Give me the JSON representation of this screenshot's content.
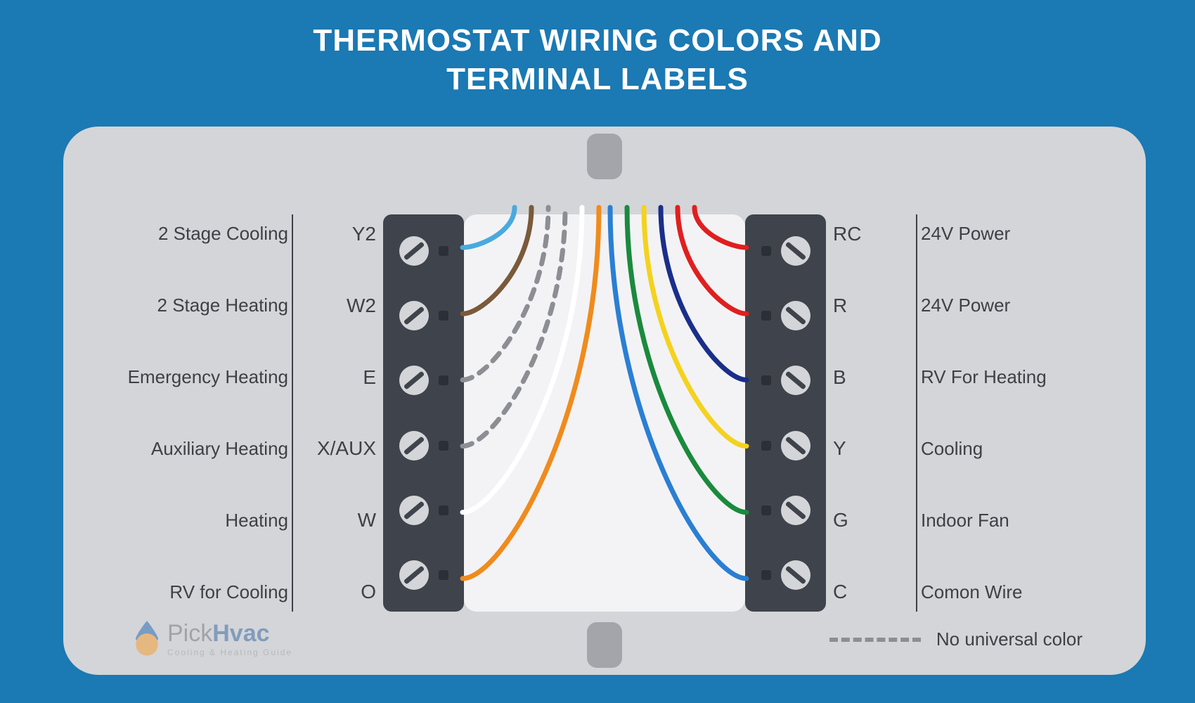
{
  "title_line1": "THERMOSTAT WIRING COLORS AND",
  "title_line2": "TERMINAL LABELS",
  "background_color": "#1b79b3",
  "panel_color": "#d4d5d8",
  "tab_color": "#a3a5aa",
  "block_color": "#3f434b",
  "center_color": "#f3f3f5",
  "text_color": "#3e4046",
  "screw_slot_color": "#3f434b",
  "title_fontsize": 44,
  "label_fontsize": 26,
  "terminal_fontsize": 28,
  "wire_stroke_width": 7,
  "left": [
    {
      "desc": "2 Stage Cooling",
      "term": "Y2",
      "wire_color": "#4aa9dd",
      "dashed": false
    },
    {
      "desc": "2 Stage Heating",
      "term": "W2",
      "wire_color": "#7a5a3a",
      "dashed": false
    },
    {
      "desc": "Emergency Heating",
      "term": "E",
      "wire_color": "#8c8e94",
      "dashed": true
    },
    {
      "desc": "Auxiliary Heating",
      "term": "X/AUX",
      "wire_color": "#8c8e94",
      "dashed": true
    },
    {
      "desc": "Heating",
      "term": "W",
      "wire_color": "#ffffff",
      "dashed": false
    },
    {
      "desc": "RV for Cooling",
      "term": "O",
      "wire_color": "#f08b1d",
      "dashed": false
    }
  ],
  "right": [
    {
      "desc": "24V Power",
      "term": "RC",
      "wire_color": "#e01f1f",
      "dashed": false
    },
    {
      "desc": "24V Power",
      "term": "R",
      "wire_color": "#e01f1f",
      "dashed": false
    },
    {
      "desc": "RV For Heating",
      "term": "B",
      "wire_color": "#1a2e8a",
      "dashed": false
    },
    {
      "desc": "Cooling",
      "term": "Y",
      "wire_color": "#f4d21f",
      "dashed": false
    },
    {
      "desc": "Indoor Fan",
      "term": "G",
      "wire_color": "#1a8a3d",
      "dashed": false
    },
    {
      "desc": "Comon Wire",
      "term": "C",
      "wire_color": "#2a7fd3",
      "dashed": false
    }
  ],
  "legend_text": "No universal color",
  "legend_dash_color": "#8c8e94",
  "brand": {
    "name_prefix": "Pick",
    "name_suffix": "Hvac",
    "subtitle": "Cooling & Heating Guide"
  }
}
